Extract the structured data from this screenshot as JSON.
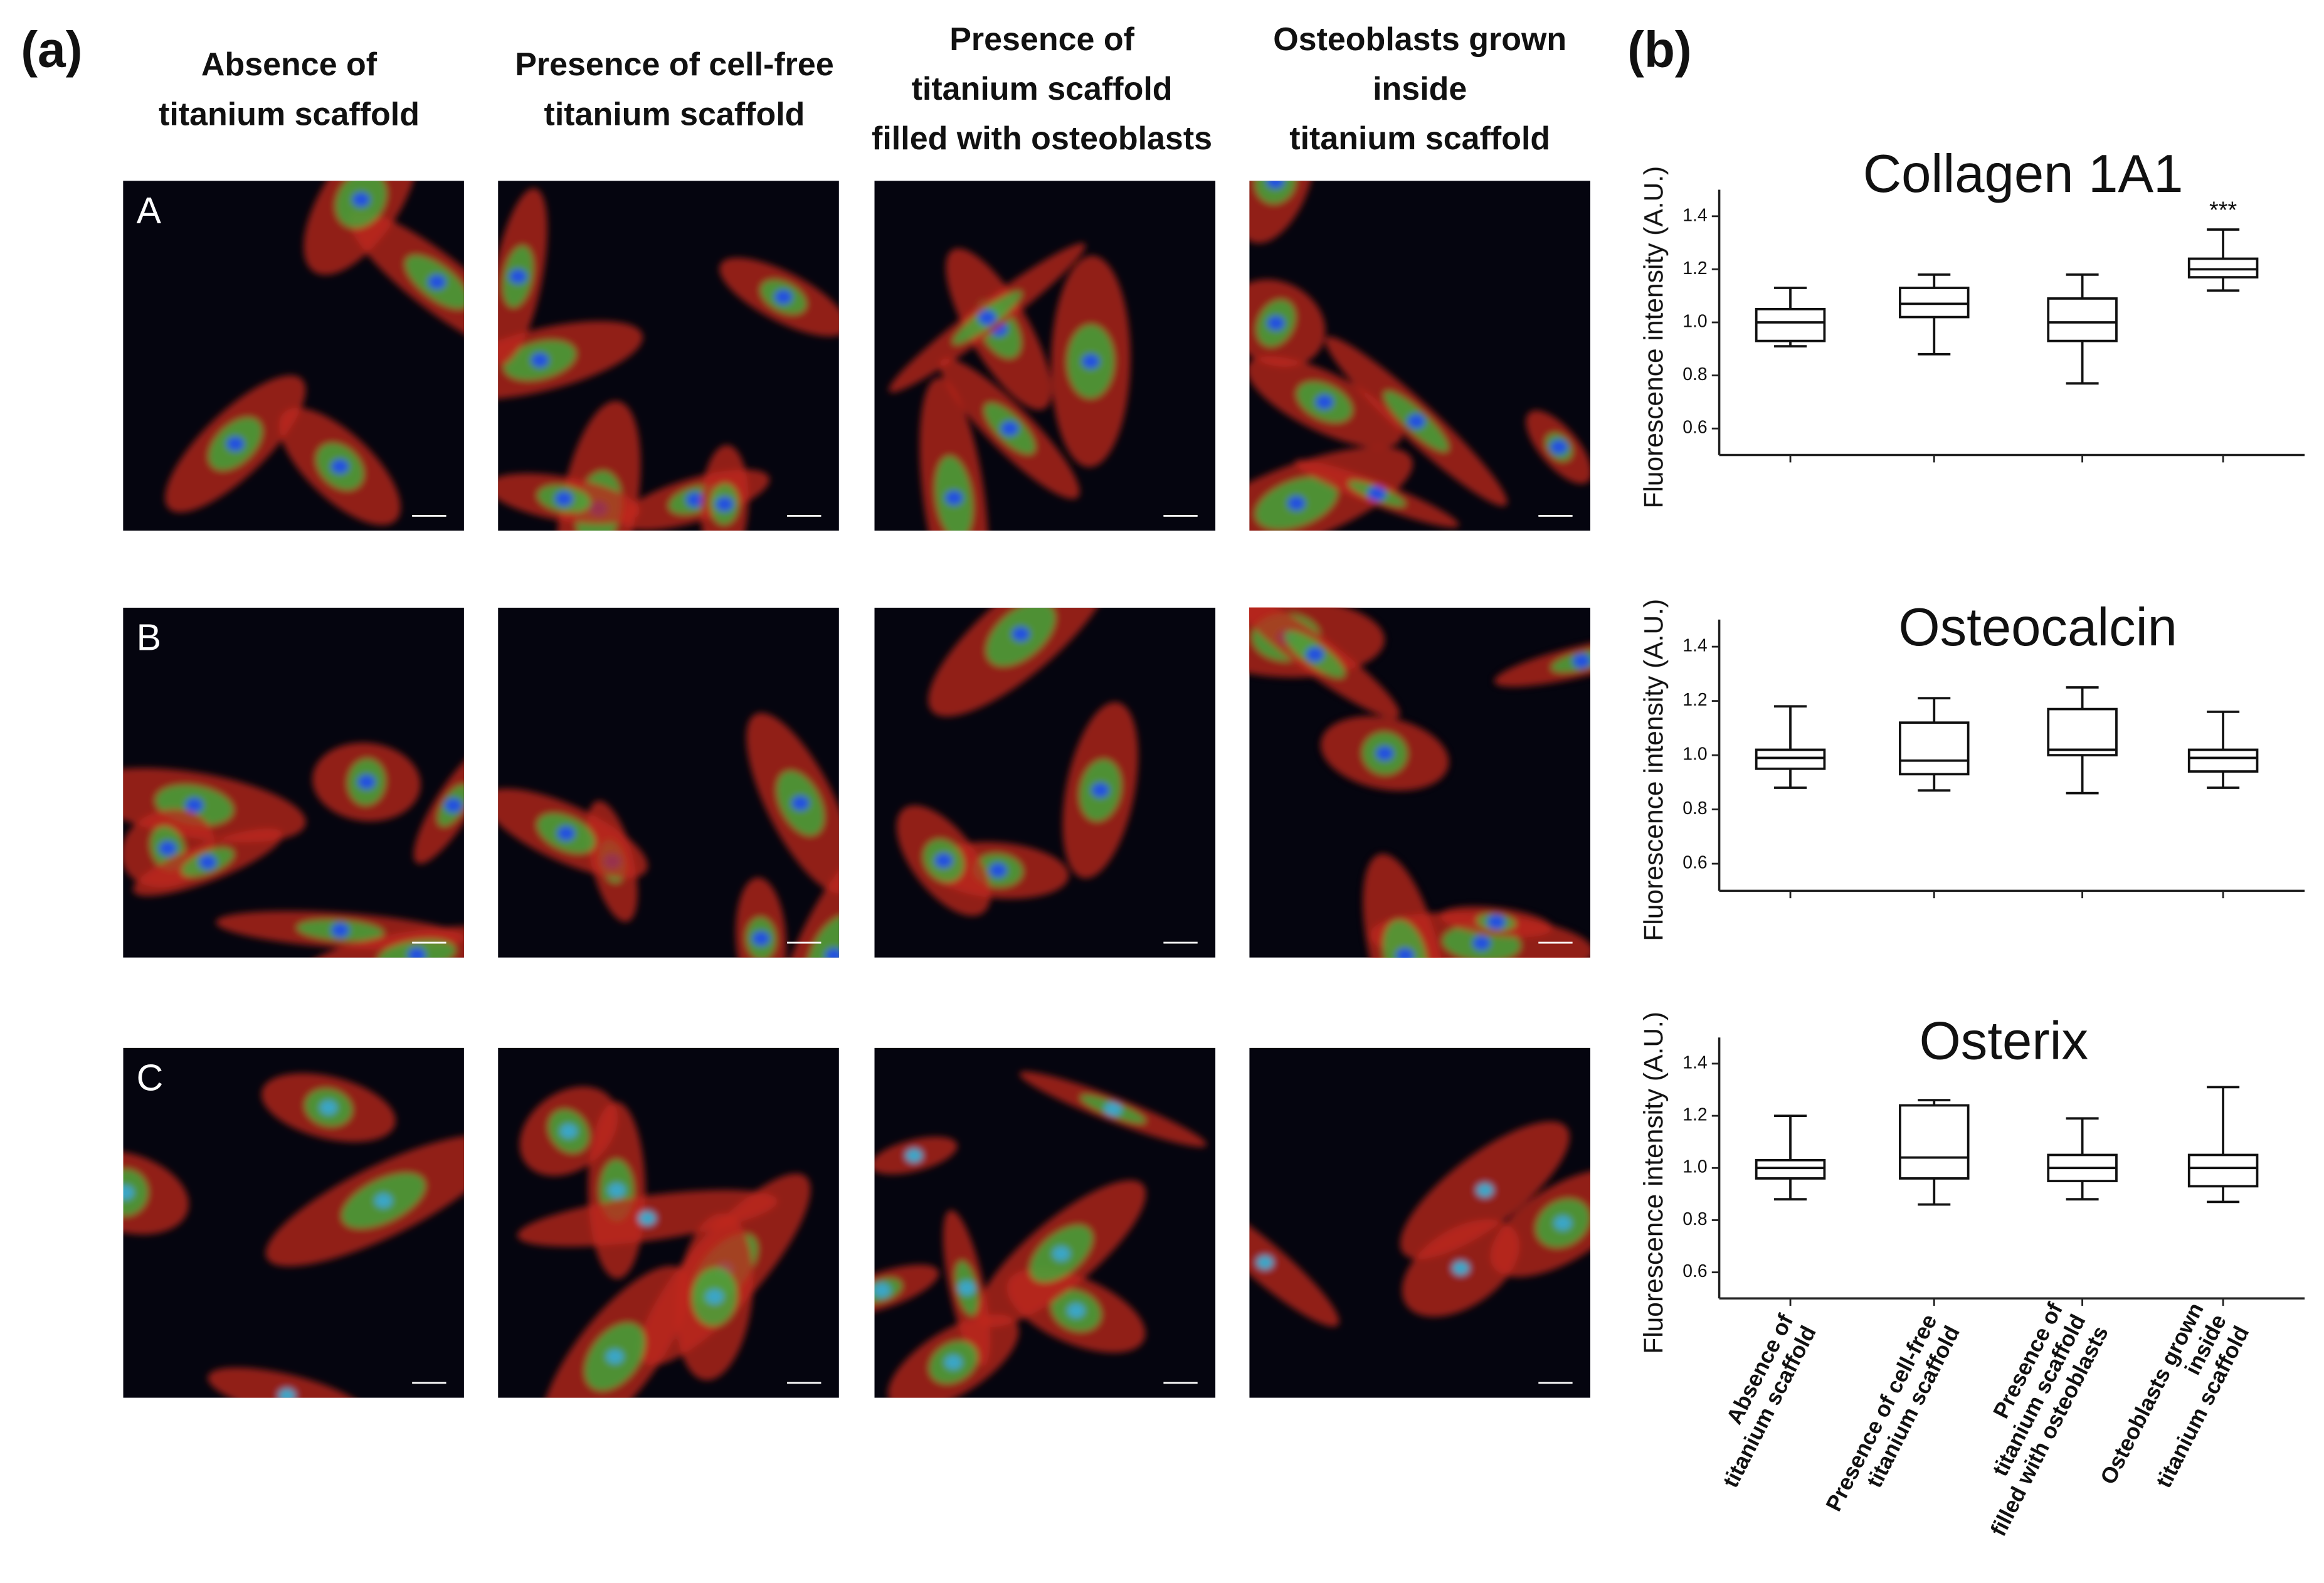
{
  "panel_a": {
    "label": "(a)",
    "columns": [
      [
        "Absence of",
        "titanium scaffold"
      ],
      [
        "Presence of  cell-free",
        "titanium scaffold"
      ],
      [
        "Presence of",
        "titanium scaffold",
        "filled with osteoblasts"
      ],
      [
        "Osteoblasts grown",
        "inside",
        "titanium scaffold"
      ]
    ],
    "rows": [
      "A",
      "B",
      "C"
    ]
  },
  "panel_b": {
    "label": "(b)"
  },
  "chart_data": [
    {
      "type": "box",
      "title": "Collagen 1A1",
      "ylabel": "Fluorescence intensity (A.U.)",
      "annotation": "***",
      "ylim": [
        0.5,
        1.5
      ],
      "yticks": [
        0.6,
        0.8,
        {
          "value": 1,
          "label": "1.0"
        },
        1.2,
        1.4
      ],
      "boxes": [
        {
          "min": 0.91,
          "q1": 0.93,
          "median": 1.0,
          "q3": 1.05,
          "max": 1.13
        },
        {
          "min": 0.88,
          "q1": 1.02,
          "median": 1.07,
          "q3": 1.13,
          "max": 1.18
        },
        {
          "min": 0.77,
          "q1": 0.93,
          "median": 1.0,
          "q3": 1.09,
          "max": 1.18
        },
        {
          "min": 1.12,
          "q1": 1.17,
          "median": 1.2,
          "q3": 1.24,
          "max": 1.35
        }
      ]
    },
    {
      "type": "box",
      "title": "Osteocalcin",
      "ylabel": "Fluorescence intensity (A.U.)",
      "ylim": [
        0.5,
        1.5
      ],
      "yticks": [
        0.6,
        0.8,
        {
          "value": 1,
          "label": "1.0"
        },
        1.2,
        1.4
      ],
      "boxes": [
        {
          "min": 0.88,
          "q1": 0.95,
          "median": 0.99,
          "q3": 1.02,
          "max": 1.18
        },
        {
          "min": 0.87,
          "q1": 0.93,
          "median": 0.98,
          "q3": 1.12,
          "max": 1.21
        },
        {
          "min": 0.86,
          "q1": 1.0,
          "median": 1.02,
          "q3": 1.17,
          "max": 1.25
        },
        {
          "min": 0.88,
          "q1": 0.94,
          "median": 0.99,
          "q3": 1.02,
          "max": 1.16
        }
      ]
    },
    {
      "type": "box",
      "title": "Osterix",
      "ylabel": "Fluorescence intensity (A.U.)",
      "ylim": [
        0.5,
        1.5
      ],
      "yticks": [
        0.6,
        0.8,
        {
          "value": 1,
          "label": "1.0"
        },
        1.2,
        1.4
      ],
      "categories": [
        "Absence of\ntitanium scaffold",
        "Presence of  cell-free\ntitanium scaffold",
        "Presence of\ntitanium scaffold\nfilled with osteoblasts",
        "Osteoblasts grown\ninside\ntitanium scaffold"
      ],
      "boxes": [
        {
          "min": 0.88,
          "q1": 0.96,
          "median": 1.0,
          "q3": 1.03,
          "max": 1.2
        },
        {
          "min": 0.86,
          "q1": 0.96,
          "median": 1.04,
          "q3": 1.24,
          "max": 1.26
        },
        {
          "min": 0.88,
          "q1": 0.95,
          "median": 1.0,
          "q3": 1.05,
          "max": 1.19
        },
        {
          "min": 0.87,
          "q1": 0.93,
          "median": 1.0,
          "q3": 1.05,
          "max": 1.31
        }
      ]
    }
  ]
}
